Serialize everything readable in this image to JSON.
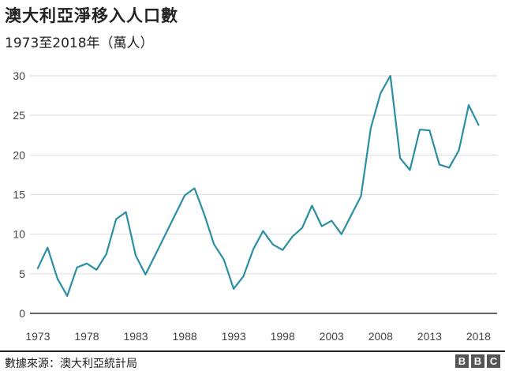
{
  "header": {
    "title": "澳大利亞淨移入人口數",
    "subtitle": "1973至2018年（萬人）"
  },
  "footer": {
    "source": "數據來源：澳大利亞統計局",
    "logo_letters": [
      "B",
      "B",
      "C"
    ]
  },
  "colors": {
    "line": "#2A8FA5",
    "grid": "#DDDDDD",
    "axis": "#333333"
  },
  "chart_data": {
    "type": "line",
    "title": "澳大利亞淨移入人口數",
    "subtitle": "1973至2018年（萬人）",
    "xlabel": "",
    "ylabel": "",
    "x_ticks": [
      "1973",
      "1978",
      "1983",
      "1988",
      "1993",
      "1998",
      "2003",
      "2008",
      "2013",
      "2018"
    ],
    "y_ticks": [
      "0",
      "5",
      "10",
      "15",
      "20",
      "25",
      "30"
    ],
    "xlim": [
      1973,
      2019
    ],
    "ylim": [
      0,
      30
    ],
    "grid": true,
    "x": [
      1973,
      1974,
      1975,
      1976,
      1977,
      1978,
      1979,
      1980,
      1981,
      1982,
      1983,
      1984,
      1985,
      1986,
      1987,
      1988,
      1989,
      1990,
      1991,
      1992,
      1993,
      1994,
      1995,
      1996,
      1997,
      1998,
      1999,
      2000,
      2001,
      2002,
      2003,
      2004,
      2005,
      2006,
      2007,
      2008,
      2009,
      2010,
      2011,
      2012,
      2013,
      2014,
      2015,
      2016,
      2017,
      2018
    ],
    "series": [
      {
        "values": [
          5.7,
          8.3,
          4.4,
          2.2,
          5.8,
          6.3,
          5.5,
          7.5,
          11.9,
          12.8,
          7.3,
          4.9,
          7.4,
          9.9,
          12.4,
          14.9,
          15.8,
          12.5,
          8.7,
          6.8,
          3.1,
          4.7,
          8.1,
          10.4,
          8.7,
          8.0,
          9.7,
          10.8,
          13.6,
          11.0,
          11.7,
          10.0,
          12.4,
          14.8,
          23.4,
          27.8,
          30.0,
          19.6,
          18.1,
          23.2,
          23.1,
          18.8,
          18.4,
          20.6,
          26.3,
          23.8
        ]
      }
    ]
  }
}
